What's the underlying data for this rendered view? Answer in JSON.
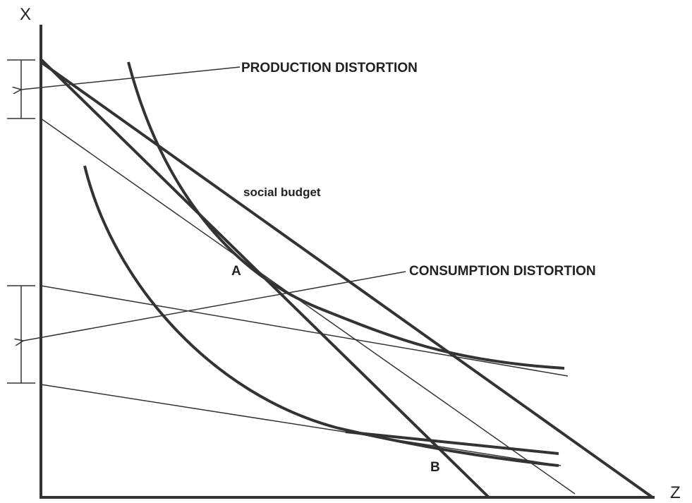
{
  "axes": {
    "y_label": "X",
    "x_label": "Z"
  },
  "annotations": {
    "production": "PRODUCTION DISTORTION",
    "budget": "social budget",
    "consumption": "CONSUMPTION DISTORTION",
    "point_a": "A",
    "point_b": "B"
  }
}
